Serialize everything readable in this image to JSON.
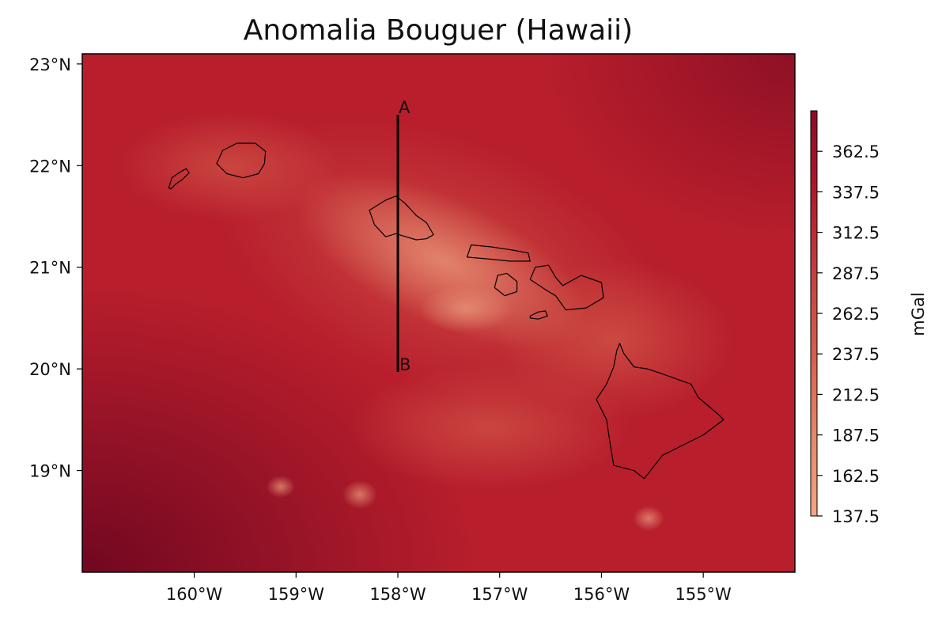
{
  "title": "Anomalia Bouguer (Hawaii)",
  "map": {
    "lon_range": [
      -161.1,
      -154.1
    ],
    "lat_range": [
      18.0,
      23.1
    ],
    "xticks": [
      {
        "value": -160,
        "label": "160°W"
      },
      {
        "value": -159,
        "label": "159°W"
      },
      {
        "value": -158,
        "label": "158°W"
      },
      {
        "value": -157,
        "label": "157°W"
      },
      {
        "value": -156,
        "label": "156°W"
      },
      {
        "value": -155,
        "label": "155°W"
      }
    ],
    "yticks": [
      {
        "value": 23,
        "label": "23°N"
      },
      {
        "value": 22,
        "label": "22°N"
      },
      {
        "value": 21,
        "label": "21°N"
      },
      {
        "value": 20,
        "label": "20°N"
      },
      {
        "value": 19,
        "label": "19°N"
      }
    ],
    "profile": {
      "start": {
        "label": "A",
        "lon": -158.0,
        "lat": 22.5
      },
      "end": {
        "label": "B",
        "lon": -158.0,
        "lat": 19.97
      }
    },
    "islands": [
      {
        "name": "Niihau",
        "points": [
          [
            -160.25,
            21.78
          ],
          [
            -160.22,
            21.88
          ],
          [
            -160.15,
            21.93
          ],
          [
            -160.08,
            21.97
          ],
          [
            -160.05,
            21.93
          ],
          [
            -160.12,
            21.86
          ],
          [
            -160.18,
            21.82
          ],
          [
            -160.23,
            21.77
          ]
        ]
      },
      {
        "name": "Kauai",
        "points": [
          [
            -159.78,
            22.02
          ],
          [
            -159.72,
            22.15
          ],
          [
            -159.58,
            22.22
          ],
          [
            -159.4,
            22.22
          ],
          [
            -159.3,
            22.14
          ],
          [
            -159.31,
            22.02
          ],
          [
            -159.37,
            21.92
          ],
          [
            -159.52,
            21.88
          ],
          [
            -159.68,
            21.92
          ]
        ]
      },
      {
        "name": "Oahu",
        "points": [
          [
            -158.28,
            21.56
          ],
          [
            -158.12,
            21.66
          ],
          [
            -158.02,
            21.7
          ],
          [
            -157.93,
            21.63
          ],
          [
            -157.82,
            21.51
          ],
          [
            -157.72,
            21.44
          ],
          [
            -157.65,
            21.32
          ],
          [
            -157.72,
            21.28
          ],
          [
            -157.82,
            21.27
          ],
          [
            -157.92,
            21.3
          ],
          [
            -158.02,
            21.33
          ],
          [
            -158.12,
            21.3
          ],
          [
            -158.23,
            21.42
          ]
        ]
      },
      {
        "name": "Molokai",
        "points": [
          [
            -157.32,
            21.1
          ],
          [
            -157.28,
            21.22
          ],
          [
            -157.08,
            21.2
          ],
          [
            -156.88,
            21.17
          ],
          [
            -156.72,
            21.14
          ],
          [
            -156.7,
            21.06
          ],
          [
            -156.9,
            21.06
          ],
          [
            -157.1,
            21.08
          ]
        ]
      },
      {
        "name": "Lanai",
        "points": [
          [
            -157.05,
            20.8
          ],
          [
            -157.02,
            20.92
          ],
          [
            -156.93,
            20.94
          ],
          [
            -156.83,
            20.86
          ],
          [
            -156.83,
            20.76
          ],
          [
            -156.95,
            20.72
          ]
        ]
      },
      {
        "name": "Maui",
        "points": [
          [
            -156.7,
            20.88
          ],
          [
            -156.65,
            21.0
          ],
          [
            -156.52,
            21.02
          ],
          [
            -156.45,
            20.9
          ],
          [
            -156.38,
            20.82
          ],
          [
            -156.2,
            20.92
          ],
          [
            -156.0,
            20.85
          ],
          [
            -155.98,
            20.7
          ],
          [
            -156.15,
            20.6
          ],
          [
            -156.35,
            20.58
          ],
          [
            -156.45,
            20.72
          ],
          [
            -156.55,
            20.78
          ]
        ]
      },
      {
        "name": "Kahoolawe",
        "points": [
          [
            -156.7,
            20.52
          ],
          [
            -156.62,
            20.56
          ],
          [
            -156.55,
            20.57
          ],
          [
            -156.53,
            20.52
          ],
          [
            -156.62,
            20.49
          ],
          [
            -156.7,
            20.5
          ]
        ]
      },
      {
        "name": "Hawaii",
        "points": [
          [
            -155.82,
            20.25
          ],
          [
            -155.78,
            20.15
          ],
          [
            -155.68,
            20.02
          ],
          [
            -155.55,
            20.0
          ],
          [
            -155.4,
            19.95
          ],
          [
            -155.12,
            19.85
          ],
          [
            -155.05,
            19.72
          ],
          [
            -154.85,
            19.55
          ],
          [
            -154.8,
            19.5
          ],
          [
            -155.0,
            19.35
          ],
          [
            -155.2,
            19.25
          ],
          [
            -155.4,
            19.15
          ],
          [
            -155.58,
            18.92
          ],
          [
            -155.68,
            19.0
          ],
          [
            -155.88,
            19.05
          ],
          [
            -155.92,
            19.3
          ],
          [
            -155.95,
            19.5
          ],
          [
            -156.05,
            19.7
          ],
          [
            -155.95,
            19.85
          ],
          [
            -155.88,
            20.02
          ],
          [
            -155.85,
            20.18
          ]
        ]
      }
    ]
  },
  "colorbar": {
    "label": "mGal",
    "min": 137.5,
    "max": 387.5,
    "ticks": [
      "137.5",
      "162.5",
      "187.5",
      "212.5",
      "237.5",
      "262.5",
      "287.5",
      "312.5",
      "337.5",
      "362.5"
    ],
    "colors": [
      "#f4a582",
      "#e58768",
      "#d6604d",
      "#c4403f",
      "#b2182b",
      "#8c0d25"
    ]
  },
  "field_colors": {
    "background": "#b81e2c",
    "dark": "#7d0a22",
    "light": "#e6896b"
  }
}
